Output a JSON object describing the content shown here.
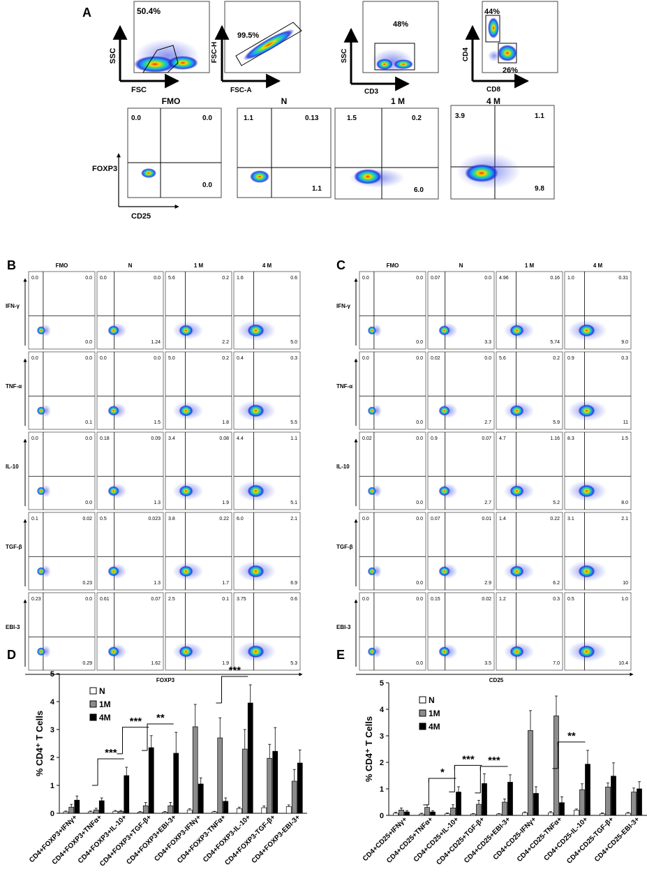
{
  "panels": {
    "A": "A",
    "B": "B",
    "C": "C",
    "D": "D",
    "E": "E"
  },
  "panelA": {
    "gates": [
      {
        "title": "",
        "x": "FSC",
        "y": "SSC",
        "pct": [
          "50.4%"
        ]
      },
      {
        "title": "",
        "x": "FSC-A",
        "y": "FSC-H",
        "pct": [
          "99.5%"
        ]
      },
      {
        "title": "",
        "x": "CD3",
        "y": "SSC",
        "pct": [
          "48%"
        ]
      },
      {
        "title": "",
        "x": "CD8",
        "y": "CD4",
        "pct": [
          "44%",
          "26%"
        ]
      }
    ],
    "quad_titles": [
      "FMO",
      "N",
      "1 M",
      "4 M"
    ],
    "xlabel": "CD25",
    "ylabel": "FOXP3",
    "quads": [
      {
        "ul": "0.0",
        "ur": "0.0",
        "lr": "0.0"
      },
      {
        "ul": "1.1",
        "ur": "0.13",
        "lr": "1.1"
      },
      {
        "ul": "1.5",
        "ur": "0.2",
        "lr": "6.0"
      },
      {
        "ul": "3.9",
        "ur": "1.1",
        "lr": "9.8"
      }
    ]
  },
  "panelB": {
    "col_titles": [
      "FMO",
      "N",
      "1 M",
      "4 M"
    ],
    "row_labels": [
      "IFN-γ",
      "TNF-α",
      "IL-10",
      "TGF-β",
      "EBI-3"
    ],
    "xlabel": "FOXP3",
    "grid": [
      [
        {
          "ul": "0.0",
          "ur": "0.0",
          "lr": "0.0"
        },
        {
          "ul": "0.0",
          "ur": "0.0",
          "lr": "1.24"
        },
        {
          "ul": "5.6",
          "ur": "0.2",
          "lr": "2.2"
        },
        {
          "ul": "1.6",
          "ur": "0.6",
          "lr": "5.0"
        }
      ],
      [
        {
          "ul": "0.0",
          "ur": "0.0",
          "lr": "0.1"
        },
        {
          "ul": "0.0",
          "ur": "0.0",
          "lr": "1.5"
        },
        {
          "ul": "5.0",
          "ur": "0.2",
          "lr": "1.8"
        },
        {
          "ul": "0.4",
          "ur": "0.3",
          "lr": "5.5"
        }
      ],
      [
        {
          "ul": "0.0",
          "ur": "0.0",
          "lr": "0.0"
        },
        {
          "ul": "0.18",
          "ur": "0.09",
          "lr": "1.3"
        },
        {
          "ul": "3.4",
          "ur": "0.08",
          "lr": "1.9"
        },
        {
          "ul": "4.4",
          "ur": "1.1",
          "lr": "5.1"
        }
      ],
      [
        {
          "ul": "0.1",
          "ur": "0.02",
          "lr": "0.23"
        },
        {
          "ul": "0.5",
          "ur": "0.023",
          "lr": "1.3"
        },
        {
          "ul": "3.8",
          "ur": "0.22",
          "lr": "1.7"
        },
        {
          "ul": "6.0",
          "ur": "2.1",
          "lr": "6.9"
        }
      ],
      [
        {
          "ul": "0.23",
          "ur": "0.0",
          "lr": "0.29"
        },
        {
          "ul": "0.61",
          "ur": "0.07",
          "lr": "1.62"
        },
        {
          "ul": "2.5",
          "ur": "0.1",
          "lr": "1.9"
        },
        {
          "ul": "3.75",
          "ur": "0.6",
          "lr": "5.3"
        }
      ]
    ]
  },
  "panelC": {
    "col_titles": [
      "FMO",
      "N",
      "1 M",
      "4 M"
    ],
    "row_labels": [
      "IFN-γ",
      "TNF-α",
      "IL-10",
      "TGF-β",
      "EBI-3"
    ],
    "xlabel": "CD25",
    "grid": [
      [
        {
          "ul": "0.0",
          "ur": "0.0",
          "lr": "0.0"
        },
        {
          "ul": "0.07",
          "ur": "0.0",
          "lr": "3.3"
        },
        {
          "ul": "4.96",
          "ur": "0.16",
          "lr": "5.74"
        },
        {
          "ul": "1.0",
          "ur": "0.31",
          "lr": "9.0"
        }
      ],
      [
        {
          "ul": "0.0",
          "ur": "0.0",
          "lr": "0.0"
        },
        {
          "ul": "0.02",
          "ur": "0.0",
          "lr": "2.7"
        },
        {
          "ul": "5.6",
          "ur": "0.2",
          "lr": "5.9"
        },
        {
          "ul": "0.9",
          "ur": "0.3",
          "lr": "11"
        }
      ],
      [
        {
          "ul": "0.02",
          "ur": "0.0",
          "lr": "0.0"
        },
        {
          "ul": "0.9",
          "ur": "0.07",
          "lr": "2.7"
        },
        {
          "ul": "4.7",
          "ur": "1.16",
          "lr": "5.2"
        },
        {
          "ul": "8.3",
          "ur": "1.5",
          "lr": "8.0"
        }
      ],
      [
        {
          "ul": "0.0",
          "ur": "0.0",
          "lr": "0.0"
        },
        {
          "ul": "0.07",
          "ur": "0.01",
          "lr": "2.9"
        },
        {
          "ul": "1.4",
          "ur": "0.22",
          "lr": "6.2"
        },
        {
          "ul": "3.1",
          "ur": "2.1",
          "lr": "10"
        }
      ],
      [
        {
          "ul": "0.0",
          "ur": "0.0",
          "lr": "0.0"
        },
        {
          "ul": "0.15",
          "ur": "0.02",
          "lr": "3.5"
        },
        {
          "ul": "1.2",
          "ur": "0.3",
          "lr": "7.0"
        },
        {
          "ul": "0.5",
          "ur": "1.0",
          "lr": "10.4"
        }
      ]
    ]
  },
  "chart_data": [
    {
      "id": "D",
      "type": "bar",
      "title": "",
      "ylabel": "% CD4⁺ T Cells",
      "ylim": [
        0,
        5
      ],
      "yticks": [
        0,
        1,
        2,
        3,
        4,
        5
      ],
      "categories": [
        "CD4+FOXP3+IFNγ+",
        "CD4+FOXP3+TNFα+",
        "CD4+FOXP3+IL-10+",
        "CD4+FOXP3+TGF-β+",
        "CD4+FOXP3+EBI-3+",
        "CD4+FOXP3-IFNγ+",
        "CD4+FOXP3-TNFα+",
        "CD4+FOXP3-IL-10+",
        "CD4+FOXP3-TGF-β+",
        "CD4+FOXP3-EBI-3+"
      ],
      "series": [
        {
          "name": "N",
          "color": "#ffffff",
          "values": [
            0.05,
            0.05,
            0.07,
            0.04,
            0.04,
            0.12,
            0.05,
            0.17,
            0.2,
            0.24
          ],
          "errors": [
            0.03,
            0.03,
            0.03,
            0.02,
            0.02,
            0.04,
            0.02,
            0.05,
            0.06,
            0.06
          ]
        },
        {
          "name": "1M",
          "color": "#8c8c8c",
          "values": [
            0.22,
            0.12,
            0.07,
            0.27,
            0.27,
            3.1,
            2.7,
            2.3,
            1.97,
            1.15
          ],
          "errors": [
            0.1,
            0.06,
            0.03,
            0.12,
            0.12,
            0.8,
            0.72,
            0.7,
            0.5,
            0.42
          ]
        },
        {
          "name": "4M",
          "color": "#000000",
          "values": [
            0.47,
            0.45,
            1.35,
            2.35,
            2.15,
            1.05,
            0.43,
            3.95,
            2.22,
            1.8
          ],
          "errors": [
            0.15,
            0.1,
            0.3,
            0.43,
            0.75,
            0.22,
            0.12,
            0.65,
            0.85,
            0.47
          ]
        }
      ],
      "significance": [
        {
          "label": "***",
          "cat": 2
        },
        {
          "label": "***",
          "cat": 3
        },
        {
          "label": "**",
          "cat": 4
        },
        {
          "label": "***",
          "cat": 7
        }
      ],
      "legend": [
        "N",
        "1M",
        "4M"
      ]
    },
    {
      "id": "E",
      "type": "bar",
      "title": "",
      "ylabel": "% CD4⁺ T Cells",
      "ylim": [
        0,
        5
      ],
      "yticks": [
        0,
        1,
        2,
        3,
        4,
        5
      ],
      "categories": [
        "CD4+CD25+IFNγ+",
        "CD4+CD25+TNFα+",
        "CD4+CD25+IL-10+",
        "CD4+CD25+TGF-β+",
        "CD4+CD25+EBI-3+",
        "CD4+CD25-IFNγ+",
        "CD4+CD25-TNFα+",
        "CD4+CD25-IL-10+",
        "CD4+CD25-TGF-β+",
        "CD4+CD25-EBI-3+"
      ],
      "series": [
        {
          "name": "N",
          "color": "#ffffff",
          "values": [
            0.08,
            0.05,
            0.06,
            0.05,
            0.05,
            0.1,
            0.1,
            0.2,
            0.06,
            0.08
          ],
          "errors": [
            0.04,
            0.03,
            0.03,
            0.02,
            0.02,
            0.03,
            0.04,
            0.04,
            0.03,
            0.03
          ]
        },
        {
          "name": "1M",
          "color": "#8c8c8c",
          "values": [
            0.2,
            0.3,
            0.28,
            0.42,
            0.5,
            3.2,
            3.75,
            0.97,
            1.07,
            0.88
          ],
          "errors": [
            0.08,
            0.1,
            0.12,
            0.15,
            0.12,
            0.75,
            0.75,
            0.22,
            0.15,
            0.15
          ]
        },
        {
          "name": "4M",
          "color": "#000000",
          "values": [
            0.13,
            0.13,
            0.88,
            1.2,
            1.25,
            0.83,
            0.48,
            1.93,
            1.48,
            1.0
          ],
          "errors": [
            0.05,
            0.05,
            0.2,
            0.37,
            0.28,
            0.25,
            0.22,
            0.52,
            0.5,
            0.27
          ]
        }
      ],
      "significance": [
        {
          "label": "*",
          "cat": 2
        },
        {
          "label": "***",
          "cat": 3
        },
        {
          "label": "***",
          "cat": 4
        },
        {
          "label": "**",
          "cat": 7
        }
      ],
      "legend": [
        "N",
        "1M",
        "4M"
      ]
    }
  ]
}
